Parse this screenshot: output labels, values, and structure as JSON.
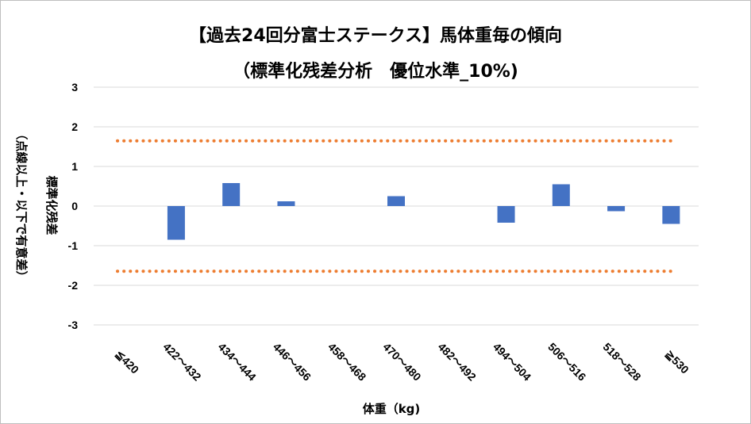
{
  "chart_data": {
    "type": "bar",
    "title": "【過去24回分富士ステークス】馬体重毎の傾向",
    "subtitle": "（標準化残差分析　優位水準_10%)",
    "xlabel": "体重（kg)",
    "ylabel": "標準化残差",
    "ylabel_note": "（点線以上・以下で有意差）",
    "categories": [
      "≦420",
      "422～432",
      "434～444",
      "446～456",
      "458～468",
      "470～480",
      "482～492",
      "494～504",
      "506～516",
      "518～528",
      "≧530"
    ],
    "values": [
      0,
      -0.85,
      0.58,
      0.12,
      0,
      0.25,
      0,
      -0.42,
      0.55,
      -0.13,
      -0.45
    ],
    "ylim": [
      -3,
      3
    ],
    "yticks": [
      "3",
      "2",
      "1",
      "0",
      "-1",
      "-2",
      "-3"
    ],
    "threshold_lines": [
      1.645,
      -1.645
    ],
    "grid": true,
    "colors": {
      "bar": "#4472c4",
      "threshold": "#ed7d31",
      "grid": "#d9d9d9"
    }
  }
}
